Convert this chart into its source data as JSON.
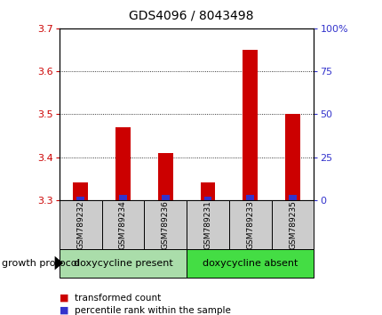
{
  "title": "GDS4096 / 8043498",
  "samples": [
    "GSM789232",
    "GSM789234",
    "GSM789236",
    "GSM789231",
    "GSM789233",
    "GSM789235"
  ],
  "transformed_count": [
    3.34,
    3.47,
    3.41,
    3.34,
    3.65,
    3.5
  ],
  "percentile_rank": [
    2,
    3,
    3,
    2,
    3,
    3
  ],
  "ylim_left": [
    3.3,
    3.7
  ],
  "yticks_left": [
    3.3,
    3.4,
    3.5,
    3.6,
    3.7
  ],
  "ylim_right": [
    0,
    100
  ],
  "yticks_right": [
    0,
    25,
    50,
    75,
    100
  ],
  "yticklabels_right": [
    "0",
    "25",
    "50",
    "75",
    "100%"
  ],
  "bar_color_red": "#cc0000",
  "bar_color_blue": "#3333cc",
  "groups": [
    {
      "label": "doxycycline present",
      "start": 0,
      "end": 3,
      "color": "#aaddaa"
    },
    {
      "label": "doxycycline absent",
      "start": 3,
      "end": 6,
      "color": "#44dd44"
    }
  ],
  "group_protocol_label": "growth protocol",
  "legend_red": "transformed count",
  "legend_blue": "percentile rank within the sample",
  "grid_dotted_yticks": [
    3.4,
    3.5,
    3.6
  ],
  "bar_width": 0.35,
  "blue_bar_width": 0.18,
  "sample_box_color": "#cccccc",
  "background_color": "#ffffff",
  "left_yaxis_color": "#cc0000",
  "right_yaxis_color": "#3333cc",
  "title_color": "#000000",
  "title_fontsize": 10,
  "tick_fontsize": 8,
  "sample_fontsize": 6.5,
  "group_fontsize": 8,
  "legend_fontsize": 7.5
}
